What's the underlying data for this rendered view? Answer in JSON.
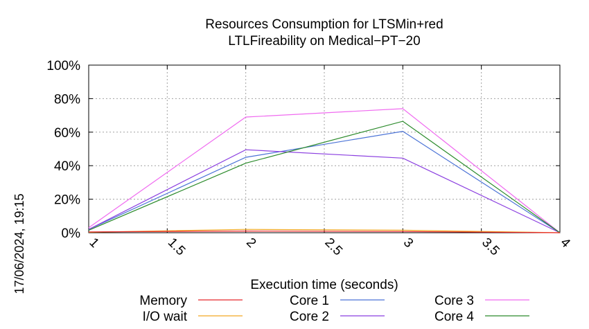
{
  "chart_data": {
    "type": "line",
    "title_line1": "Resources Consumption for LTSMin+red",
    "title_line2": "LTLFireability on Medical−PT−20",
    "xlabel": "Execution time (seconds)",
    "ylabel": "",
    "side_label": "17/06/2024, 19:15",
    "xlim": [
      1,
      4
    ],
    "ylim": [
      0,
      100
    ],
    "x_ticks": [
      1,
      1.5,
      2,
      2.5,
      3,
      3.5,
      4
    ],
    "x_tick_labels": [
      "1",
      "1.5",
      "2",
      "2.5",
      "3",
      "3.5",
      "4"
    ],
    "y_ticks": [
      0,
      20,
      40,
      60,
      80,
      100
    ],
    "y_tick_labels": [
      "0%",
      "20%",
      "40%",
      "60%",
      "80%",
      "100%"
    ],
    "grid": true,
    "legend_position": "bottom",
    "series": [
      {
        "name": "Memory",
        "color": "#e8262a",
        "x": [
          1,
          2,
          3,
          4
        ],
        "y": [
          0.5,
          1.0,
          0.7,
          0.0
        ]
      },
      {
        "name": "I/O wait",
        "color": "#f2a623",
        "x": [
          1,
          2,
          3,
          4
        ],
        "y": [
          0.3,
          2.0,
          1.5,
          0.0
        ]
      },
      {
        "name": "Core 1",
        "color": "#4a72d6",
        "x": [
          1,
          2,
          3,
          4
        ],
        "y": [
          2,
          45,
          60.5,
          0
        ]
      },
      {
        "name": "Core 2",
        "color": "#8b3fe0",
        "x": [
          1,
          2,
          3,
          4
        ],
        "y": [
          2,
          49.5,
          44.5,
          0
        ]
      },
      {
        "name": "Core 3",
        "color": "#f06af0",
        "x": [
          1,
          2,
          3,
          4
        ],
        "y": [
          3,
          69,
          74,
          0
        ]
      },
      {
        "name": "Core 4",
        "color": "#2a8a2a",
        "x": [
          1,
          2,
          3,
          4
        ],
        "y": [
          1.5,
          41.5,
          66.5,
          0
        ]
      }
    ]
  }
}
